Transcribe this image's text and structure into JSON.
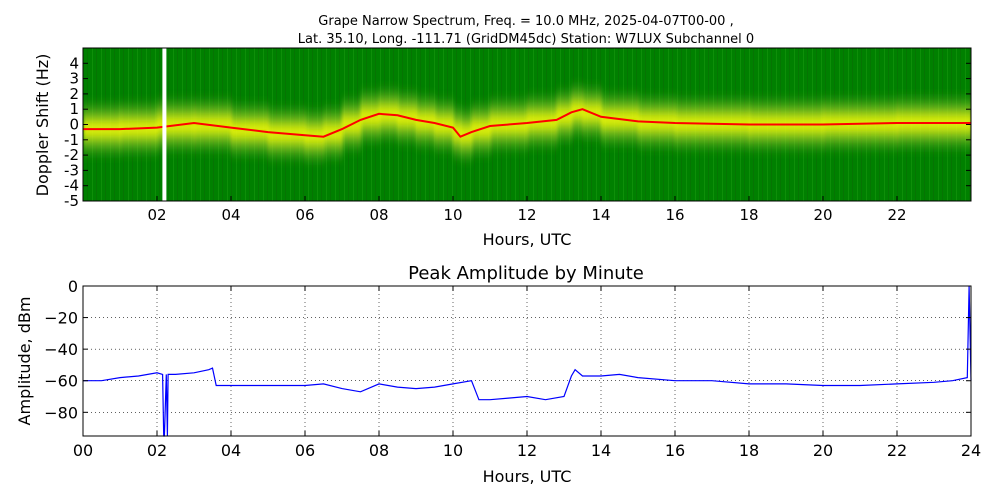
{
  "chart_data": [
    {
      "type": "heatmap",
      "title_line1": "Grape Narrow Spectrum, Freq. = 10.0 MHz, 2025-04-07T00-00 ,",
      "title_line2": "Lat.  35.10, Long. -111.71 (GridDM45dc) Station: W7LUX Subchannel 0",
      "xlabel": "Hours, UTC",
      "ylabel": "Doppler Shift (Hz)",
      "xlim": [
        0,
        24
      ],
      "ylim": [
        -5,
        5
      ],
      "x_ticks": [
        2,
        4,
        6,
        8,
        10,
        12,
        14,
        16,
        18,
        20,
        22
      ],
      "x_tick_labels": [
        "02",
        "04",
        "06",
        "08",
        "10",
        "12",
        "14",
        "16",
        "18",
        "20",
        "22"
      ],
      "y_ticks": [
        -5,
        -4,
        -3,
        -2,
        -1,
        0,
        1,
        2,
        3,
        4
      ],
      "y_tick_labels": [
        "-5",
        "-4",
        "-3",
        "-2",
        "-1",
        "0",
        "1",
        "2",
        "3",
        "4"
      ],
      "colors": {
        "background": "#008000",
        "mid": "#9acd32",
        "high": "#ffff00",
        "peak": "#ff0000",
        "gap": "#ffffff"
      },
      "gap_hours": 2.2,
      "doppler_trace": {
        "x": [
          0,
          1,
          2,
          3,
          4,
          5,
          6,
          6.5,
          7,
          7.5,
          8,
          8.5,
          9,
          9.5,
          10,
          10.2,
          10.5,
          11,
          12,
          12.8,
          13.2,
          13.5,
          14,
          15,
          16,
          18,
          20,
          22,
          24
        ],
        "y": [
          -0.3,
          -0.3,
          -0.2,
          0.1,
          -0.2,
          -0.5,
          -0.7,
          -0.8,
          -0.3,
          0.3,
          0.7,
          0.6,
          0.3,
          0.1,
          -0.2,
          -0.8,
          -0.5,
          -0.1,
          0.1,
          0.3,
          0.8,
          1.0,
          0.5,
          0.2,
          0.1,
          0.0,
          0.0,
          0.1,
          0.1
        ]
      }
    },
    {
      "type": "line",
      "title": "Peak Amplitude by Minute",
      "xlabel": "Hours, UTC",
      "ylabel": "Amplitude, dBm",
      "xlim": [
        0,
        24
      ],
      "ylim": [
        -95,
        0
      ],
      "grid": true,
      "x_ticks": [
        0,
        2,
        4,
        6,
        8,
        10,
        12,
        14,
        16,
        18,
        20,
        22,
        24
      ],
      "x_tick_labels": [
        "00",
        "02",
        "04",
        "06",
        "08",
        "10",
        "12",
        "14",
        "16",
        "18",
        "20",
        "22",
        "24"
      ],
      "y_ticks": [
        0,
        -20,
        -40,
        -60,
        -80
      ],
      "y_tick_labels": [
        "0",
        "−20",
        "−40",
        "−60",
        "−80"
      ],
      "line_color": "#0000ff",
      "series": [
        {
          "x": [
            0,
            0.5,
            1,
            1.5,
            2,
            2.15,
            2.18,
            2.2,
            2.25,
            2.28,
            2.3,
            2.5,
            3,
            3.4,
            3.5,
            3.6,
            4,
            5,
            6,
            6.5,
            7,
            7.5,
            8,
            8.5,
            9,
            9.5,
            10,
            10.5,
            10.7,
            10.8,
            11,
            11.5,
            12,
            12.5,
            13,
            13.2,
            13.3,
            13.5,
            14,
            14.5,
            15,
            16,
            17,
            18,
            19,
            20,
            21,
            22,
            23,
            23.5,
            23.9,
            23.95,
            24
          ],
          "y": [
            -60,
            -60,
            -58,
            -57,
            -55,
            -56,
            -95,
            -95,
            -56,
            -95,
            -56,
            -56,
            -55,
            -53,
            -52,
            -63,
            -63,
            -63,
            -63,
            -62,
            -65,
            -67,
            -62,
            -64,
            -65,
            -64,
            -62,
            -60,
            -72,
            -72,
            -72,
            -71,
            -70,
            -72,
            -70,
            -57,
            -53,
            -57,
            -57,
            -56,
            -58,
            -60,
            -60,
            -62,
            -62,
            -63,
            -63,
            -62,
            -61,
            -60,
            -58,
            0,
            -60
          ]
        }
      ]
    }
  ]
}
